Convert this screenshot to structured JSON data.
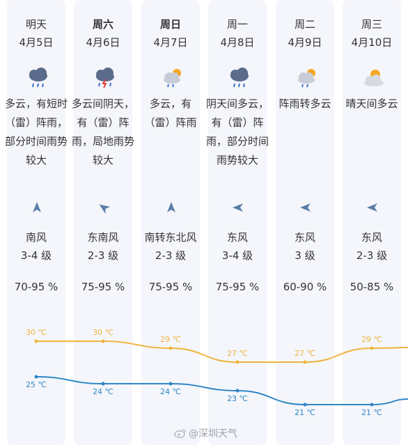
{
  "days": [
    {
      "day": "明天",
      "date": "4月5日",
      "bold": false,
      "icon": "thunder-rain-cloud-icon",
      "desc": "多云，有短时（雷）阵雨，部分时间雨势较大",
      "wind_dir": "南风",
      "wind_level": "3-4 级",
      "wind_icon": "arrow-north-icon",
      "humidity": "70-95 %",
      "high": "30 ℃",
      "low": "25 ℃"
    },
    {
      "day": "周六",
      "date": "4月6日",
      "bold": true,
      "icon": "thunderstorm-cloud-icon",
      "desc": "多云间阴天，有（雷）阵雨，局地雨势较大",
      "wind_dir": "东南风",
      "wind_level": "2-3 级",
      "wind_icon": "arrow-northwest-icon",
      "humidity": "75-95 %",
      "high": "30 ℃",
      "low": "24 ℃"
    },
    {
      "day": "周日",
      "date": "4月7日",
      "bold": true,
      "icon": "sun-cloud-rain-icon",
      "desc": "多云，有（雷）阵雨",
      "wind_dir": "南转东北风",
      "wind_level": "2-3 级",
      "wind_icon": "arrow-north-icon",
      "humidity": "75-95 %",
      "high": "29 ℃",
      "low": "24 ℃"
    },
    {
      "day": "周一",
      "date": "4月8日",
      "bold": false,
      "icon": "thunder-rain-cloud-icon",
      "desc": "阴天间多云，有（雷）阵雨，部分时间雨势较大",
      "wind_dir": "东风",
      "wind_level": "3-4 级",
      "wind_icon": "arrow-west-icon",
      "humidity": "75-95 %",
      "high": "27 ℃",
      "low": "23 ℃"
    },
    {
      "day": "周二",
      "date": "4月9日",
      "bold": false,
      "icon": "sun-cloud-rain-icon",
      "desc": "阵雨转多云",
      "wind_dir": "东风",
      "wind_level": "3 级",
      "wind_icon": "arrow-west-icon",
      "humidity": "60-90 %",
      "high": "27 ℃",
      "low": "21 ℃"
    },
    {
      "day": "周三",
      "date": "4月10日",
      "bold": false,
      "icon": "sun-behind-cloud-icon",
      "desc": "晴天间多云",
      "wind_dir": "东风",
      "wind_level": "2-3 级",
      "wind_icon": "arrow-west-icon",
      "humidity": "50-85 %",
      "high": "29 ℃",
      "low": "21 ℃"
    }
  ],
  "colors": {
    "high": "#f0b43c",
    "low": "#2f86c6",
    "column_bg": "#f4f6fb"
  },
  "chart_data": {
    "type": "line",
    "categories": [
      "4月5日",
      "4月6日",
      "4月7日",
      "4月8日",
      "4月9日",
      "4月10日"
    ],
    "series": [
      {
        "values": [
          30,
          30,
          29,
          27,
          27,
          29
        ],
        "color": "#f0b43c"
      },
      {
        "values": [
          25,
          24,
          24,
          23,
          21,
          21
        ],
        "color": "#2f86c6"
      }
    ]
  },
  "watermark": "@深圳天气"
}
